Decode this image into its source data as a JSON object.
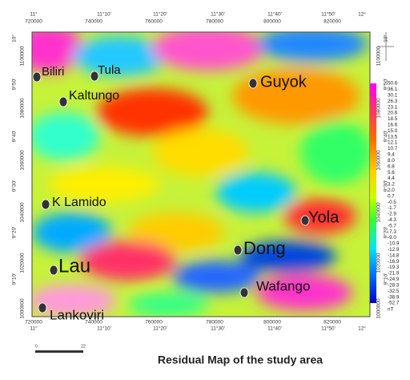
{
  "axes": {
    "top_degrees": [
      "11°",
      "11°10'",
      "11°20'",
      "11°30'",
      "11°40'",
      "11°50'",
      "12°"
    ],
    "top_utm": [
      "720000",
      "740000",
      "760000",
      "780000",
      "800000",
      "820000"
    ],
    "bottom_utm": [
      "720000",
      "740000",
      "760000",
      "780000",
      "800000",
      "820000"
    ],
    "bottom_degrees": [
      "11°",
      "11°10'",
      "11°20'",
      "11°30'",
      "11°40'",
      "11°50'",
      "12°"
    ],
    "left_degrees": [
      "10°",
      "9°50'",
      "9°40'",
      "9°30'",
      "9°20'",
      "9°10'"
    ],
    "left_utm": [
      "1100000",
      "1080000",
      "1060000",
      "1040000",
      "1020000",
      "1000000"
    ],
    "right_degrees": [
      "10°",
      "9°50'",
      "9°40'",
      "9°30'",
      "9°20'",
      "9°10'"
    ],
    "right_utm": [
      "1100000",
      "1080000",
      "1060000",
      "1040000",
      "1020000",
      "1000000"
    ]
  },
  "towns": [
    "Biliri",
    "Tula",
    "Guyok",
    "Kaltungo",
    "K Lamido",
    "Yola",
    "Dong",
    "Lau",
    "Wafango",
    "Lankoviri"
  ],
  "legend": {
    "labels": [
      "50.6",
      "36.1",
      "30.1",
      "26.3",
      "23.1",
      "20.6",
      "18.5",
      "16.6",
      "15.0",
      "13.5",
      "12.1",
      "10.7",
      "9.4",
      "8.0",
      "6.8",
      "5.6",
      "4.4",
      "3.2",
      "2.0",
      "0.7",
      "-0.5",
      "-1.7",
      "-2.9",
      "-4.3",
      "-5.7",
      "-7.3",
      "-9.0",
      "-10.9",
      "-12.9",
      "-14.8",
      "-16.9",
      "-19.3",
      "-21.9",
      "-24.9",
      "-28.3",
      "-32.5",
      "-38.9",
      "-52.7"
    ],
    "unit": "nT"
  },
  "scale_bar": {
    "labels": [
      "0",
      "22"
    ]
  },
  "caption": "Residual Map of the study area"
}
